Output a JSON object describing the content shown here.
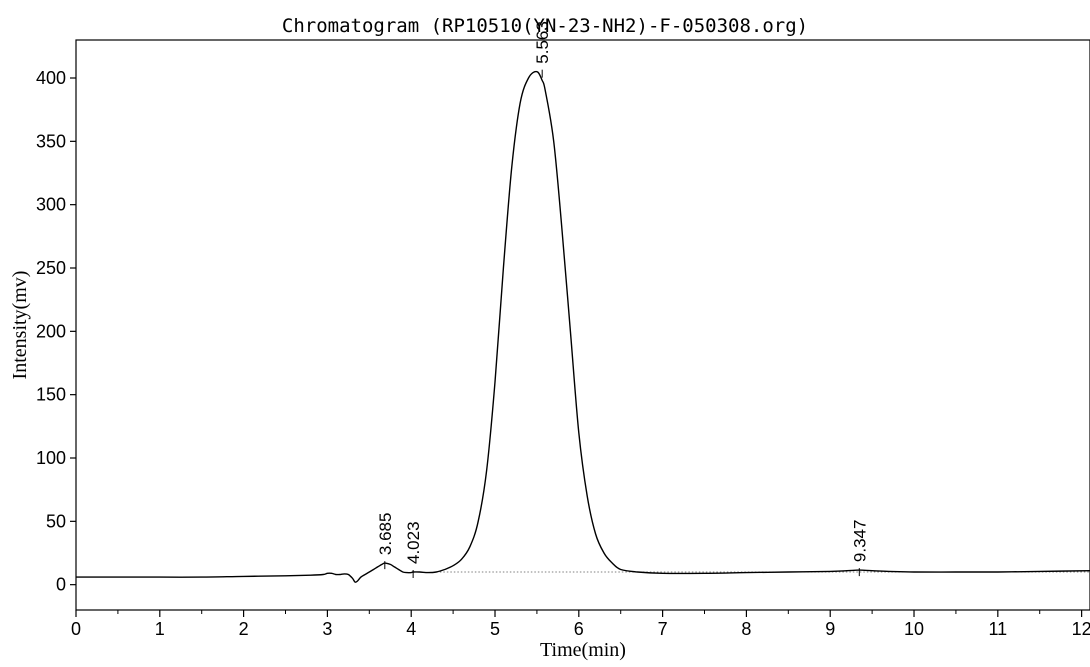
{
  "chart_data": {
    "type": "line",
    "title": "Chromatogram (RP10510(YN-23-NH2)-F-050308.org)",
    "xlabel": "Time(min)",
    "ylabel": "Intensity(mv)",
    "xlim": [
      0,
      12.1
    ],
    "ylim": [
      -20,
      430
    ],
    "xticks": [
      0,
      1,
      2,
      3,
      4,
      5,
      6,
      7,
      8,
      9,
      10,
      11,
      12
    ],
    "yticks": [
      0,
      50,
      100,
      150,
      200,
      250,
      300,
      350,
      400
    ],
    "grid": false,
    "legend": "none",
    "baseline_level": 10,
    "series": [
      {
        "x": [
          0,
          0.5,
          1,
          1.5,
          2,
          2.5,
          2.8,
          2.95,
          3.0,
          3.05,
          3.1,
          3.15,
          3.2,
          3.25,
          3.3,
          3.33,
          3.36,
          3.4,
          3.45,
          3.5,
          3.55,
          3.6,
          3.65,
          3.685,
          3.75,
          3.8,
          3.85,
          3.9,
          3.95,
          4.0,
          4.023,
          4.1,
          4.2,
          4.3,
          4.4,
          4.5,
          4.6,
          4.7,
          4.8,
          4.9,
          5.0,
          5.1,
          5.2,
          5.3,
          5.4,
          5.5,
          5.563,
          5.6,
          5.7,
          5.8,
          5.9,
          6.0,
          6.1,
          6.2,
          6.3,
          6.4,
          6.5,
          6.7,
          7.0,
          7.5,
          8.0,
          8.5,
          9.0,
          9.2,
          9.347,
          9.5,
          9.7,
          10.0,
          10.5,
          11.0,
          11.5,
          12.1
        ],
        "y": [
          6,
          6,
          6,
          6,
          6.5,
          7,
          7.5,
          8,
          9,
          9,
          8,
          8,
          8.5,
          8,
          5,
          2,
          3,
          6,
          8,
          10,
          12,
          14,
          16,
          17,
          16,
          14,
          12,
          10,
          9.5,
          9.5,
          10,
          10,
          9.5,
          10,
          12,
          15,
          20,
          30,
          50,
          90,
          160,
          250,
          330,
          380,
          400,
          405,
          398,
          390,
          350,
          280,
          200,
          120,
          70,
          40,
          25,
          17,
          12,
          10,
          9,
          9,
          9.5,
          10,
          10.5,
          11,
          11.5,
          11,
          10.5,
          10,
          10,
          10,
          10.5,
          11
        ]
      }
    ],
    "peak_labels": [
      "3.685",
      "4.023",
      "5.563",
      "9.347"
    ],
    "peak_positions": [
      3.685,
      4.023,
      5.563,
      9.347
    ],
    "peak_heights": [
      17,
      10,
      405,
      11.5
    ]
  }
}
